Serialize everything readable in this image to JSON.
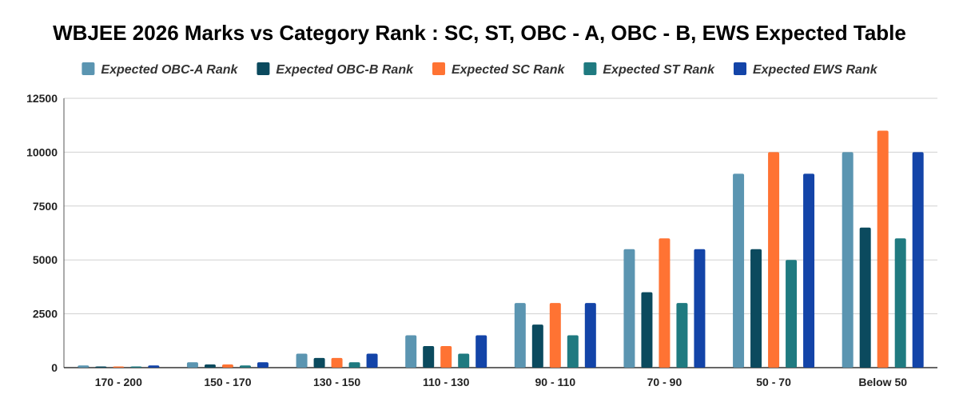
{
  "chart_data": {
    "type": "bar",
    "title": "WBJEE 2026 Marks vs Category Rank : SC, ST, OBC - A, OBC - B, EWS Expected Table",
    "xlabel": "",
    "ylabel": "",
    "categories": [
      "170 - 200",
      "150 - 170",
      "130 - 150",
      "110 - 130",
      "90 - 110",
      "70 - 90",
      "50 - 70",
      "Below 50"
    ],
    "ylim": [
      0,
      12500
    ],
    "yticks": [
      0,
      2500,
      5000,
      7500,
      10000,
      12500
    ],
    "grid": true,
    "legend_position": "top",
    "series": [
      {
        "name": "Expected OBC-A Rank",
        "color": "#5b95b1",
        "values": [
          100,
          250,
          650,
          1500,
          3000,
          5500,
          9000,
          10000
        ]
      },
      {
        "name": "Expected OBC-B Rank",
        "color": "#0b4a5e",
        "values": [
          50,
          150,
          450,
          1000,
          2000,
          3500,
          5500,
          6500
        ]
      },
      {
        "name": "Expected SC Rank",
        "color": "#ff7333",
        "values": [
          50,
          150,
          450,
          1000,
          3000,
          6000,
          10000,
          11000
        ]
      },
      {
        "name": "Expected ST Rank",
        "color": "#1f7a80",
        "values": [
          25,
          100,
          250,
          650,
          1500,
          3000,
          5000,
          6000
        ]
      },
      {
        "name": "Expected EWS Rank",
        "color": "#1344a8",
        "values": [
          100,
          250,
          650,
          1500,
          3000,
          5500,
          9000,
          10000
        ]
      }
    ]
  }
}
